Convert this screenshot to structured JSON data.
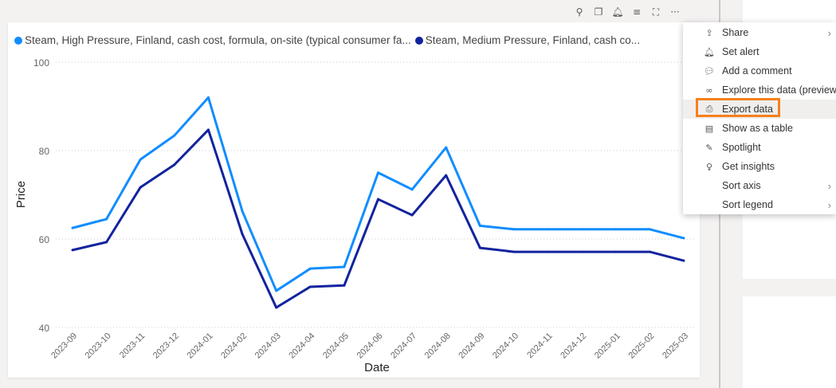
{
  "toolbar": {
    "icons": [
      "pin-icon",
      "copy-icon",
      "bell-icon",
      "filter-icon",
      "focus-mode-icon",
      "more-options-icon"
    ],
    "more": "···"
  },
  "legend": [
    {
      "label": "Steam, High Pressure, Finland, cash cost, formula, on-site (typical consumer fa...",
      "color": "#118dff"
    },
    {
      "label": "Steam, Medium Pressure, Finland, cash co...",
      "color": "#12239e"
    }
  ],
  "menu": {
    "items": [
      {
        "label": "Share",
        "icon": "share-icon",
        "submenu": true
      },
      {
        "label": "Set alert",
        "icon": "bell-icon",
        "submenu": false
      },
      {
        "label": "Add a comment",
        "icon": "comment-icon",
        "submenu": false
      },
      {
        "label": "Explore this data (preview)",
        "icon": "binoculars-icon",
        "submenu": false
      },
      {
        "label": "Export data",
        "icon": "export-icon",
        "submenu": false,
        "highlighted": true
      },
      {
        "label": "Show as a table",
        "icon": "table-icon",
        "submenu": false
      },
      {
        "label": "Spotlight",
        "icon": "spotlight-icon",
        "submenu": false
      },
      {
        "label": "Get insights",
        "icon": "lightbulb-icon",
        "submenu": false
      },
      {
        "label": "Sort axis",
        "icon": "",
        "submenu": true
      },
      {
        "label": "Sort legend",
        "icon": "",
        "submenu": true
      }
    ]
  },
  "chart_data": {
    "type": "line",
    "xlabel": "Date",
    "ylabel": "Price",
    "ylim": [
      40,
      100
    ],
    "yticks": [
      "40",
      "60",
      "80",
      "100"
    ],
    "grid": true,
    "legend_position": "top-left",
    "categories": [
      "2023-09",
      "2023-10",
      "2023-11",
      "2023-12",
      "2024-01",
      "2024-02",
      "2024-03",
      "2024-04",
      "2024-05",
      "2024-06",
      "2024-07",
      "2024-08",
      "2024-09",
      "2024-10",
      "2024-11",
      "2024-12",
      "2025-01",
      "2025-02",
      "2025-03"
    ],
    "series": [
      {
        "name": "Steam, High Pressure, Finland, cash cost, formula, on-site (typical consumer fa...",
        "color": "#118dff",
        "values": [
          62.5,
          64.5,
          78,
          83.4,
          92,
          66.3,
          48.3,
          53.3,
          53.7,
          75,
          71.2,
          80.7,
          63,
          62.2,
          62.2,
          62.2,
          62.2,
          62.2,
          60.2
        ]
      },
      {
        "name": "Steam, Medium Pressure, Finland, cash co...",
        "color": "#12239e",
        "values": [
          57.5,
          59.3,
          71.7,
          76.8,
          84.7,
          61.1,
          44.5,
          49.2,
          49.5,
          69,
          65.4,
          74.4,
          58,
          57.1,
          57.1,
          57.1,
          57.1,
          57.1,
          55.1
        ]
      }
    ]
  }
}
